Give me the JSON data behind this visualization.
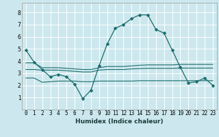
{
  "xlabel": "Humidex (Indice chaleur)",
  "background_color": "#cce8ee",
  "grid_color": "#ffffff",
  "line_color": "#1a6b6b",
  "xlim": [
    -0.5,
    23.5
  ],
  "ylim": [
    0,
    8.8
  ],
  "yticks": [
    1,
    2,
    3,
    4,
    5,
    6,
    7,
    8
  ],
  "xticks": [
    0,
    1,
    2,
    3,
    4,
    5,
    6,
    7,
    8,
    9,
    10,
    11,
    12,
    13,
    14,
    15,
    16,
    17,
    18,
    19,
    20,
    21,
    22,
    23
  ],
  "line1_x": [
    0,
    1,
    2,
    3,
    4,
    5,
    6,
    7,
    8,
    9,
    10,
    11,
    12,
    13,
    14,
    15,
    16,
    17,
    18,
    19,
    20,
    21,
    22,
    23
  ],
  "line1_y": [
    4.9,
    3.9,
    3.3,
    2.7,
    2.9,
    2.7,
    2.1,
    0.9,
    1.6,
    3.6,
    5.4,
    6.7,
    7.0,
    7.5,
    7.8,
    7.8,
    6.6,
    6.3,
    4.9,
    3.5,
    2.2,
    2.3,
    2.6,
    2.0
  ],
  "line2_x": [
    0,
    1,
    2,
    3,
    4,
    5,
    6,
    7,
    8,
    9,
    10,
    11,
    12,
    13,
    14,
    15,
    16,
    17,
    18,
    19,
    20,
    21,
    22,
    23
  ],
  "line2_y": [
    3.85,
    3.85,
    3.45,
    3.45,
    3.45,
    3.4,
    3.35,
    3.3,
    3.3,
    3.45,
    3.55,
    3.55,
    3.55,
    3.6,
    3.65,
    3.68,
    3.68,
    3.68,
    3.68,
    3.72,
    3.72,
    3.72,
    3.72,
    3.72
  ],
  "line3_x": [
    0,
    1,
    2,
    3,
    4,
    5,
    6,
    7,
    8,
    9,
    10,
    11,
    12,
    13,
    14,
    15,
    16,
    17,
    18,
    19,
    20,
    21,
    22,
    23
  ],
  "line3_y": [
    3.3,
    3.3,
    3.25,
    3.25,
    3.25,
    3.2,
    3.15,
    3.1,
    3.1,
    3.25,
    3.3,
    3.3,
    3.3,
    3.35,
    3.38,
    3.4,
    3.4,
    3.4,
    3.4,
    3.42,
    3.42,
    3.42,
    3.42,
    3.42
  ],
  "line4_x": [
    0,
    1,
    2,
    3,
    4,
    5,
    6,
    7,
    8,
    9,
    10,
    11,
    12,
    13,
    14,
    15,
    16,
    17,
    18,
    19,
    20,
    21,
    22,
    23
  ],
  "line4_y": [
    2.6,
    2.6,
    2.25,
    2.3,
    2.35,
    2.35,
    2.35,
    2.3,
    2.3,
    2.35,
    2.35,
    2.35,
    2.35,
    2.35,
    2.38,
    2.38,
    2.38,
    2.38,
    2.38,
    2.38,
    2.38,
    2.38,
    2.38,
    2.38
  ],
  "marker": "D",
  "marker_size": 2.5,
  "tick_fontsize": 5.5,
  "xlabel_fontsize": 6.5
}
